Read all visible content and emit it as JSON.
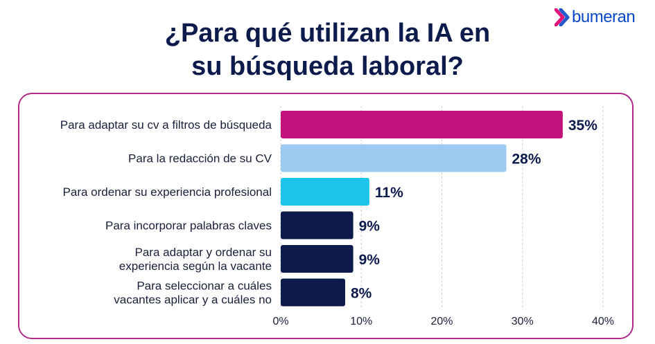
{
  "title_line1": "¿Para qué utilizan la IA en",
  "title_line2": "su búsqueda laboral?",
  "brand": {
    "name": "bumeran",
    "color": "#0a48c8",
    "accent": "#e0157a"
  },
  "chart_data": {
    "type": "bar",
    "orientation": "horizontal",
    "categories": [
      [
        "Para adaptar su cv a filtros de búsqueda"
      ],
      [
        "Para la redacción de su CV"
      ],
      [
        "Para ordenar su experiencia profesional"
      ],
      [
        "Para incorporar palabras claves"
      ],
      [
        "Para adaptar y ordenar su",
        "experiencia según la vacante"
      ],
      [
        "Para seleccionar a cuáles",
        "vacantes aplicar y a cuáles no"
      ]
    ],
    "values": [
      35,
      28,
      11,
      9,
      9,
      8
    ],
    "value_labels": [
      "35%",
      "28%",
      "11%",
      "9%",
      "9%",
      "8%"
    ],
    "colors": [
      "#c4127f",
      "#9ccaf0",
      "#1ec3ec",
      "#0d1b4c",
      "#0d1b4c",
      "#0d1b4c"
    ],
    "xlim": [
      0,
      40
    ],
    "xticks": [
      "0%",
      "10%",
      "20%",
      "30%",
      "40%"
    ],
    "grid": "vertical dashed"
  }
}
